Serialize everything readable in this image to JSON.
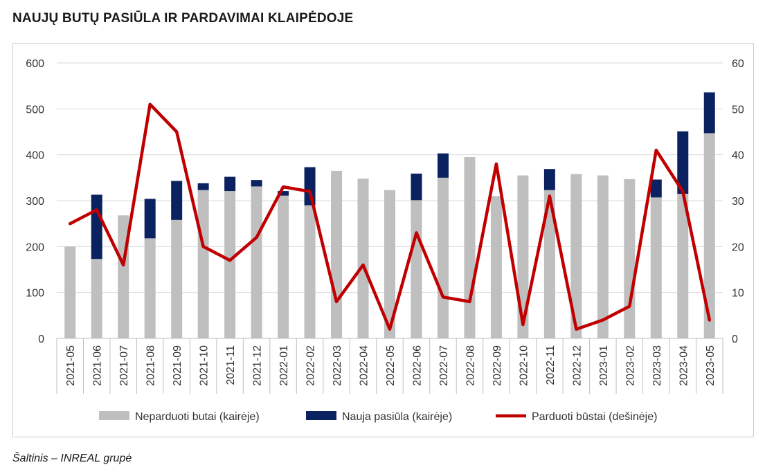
{
  "title": "NAUJŲ BUTŲ PASIŪLA IR PARDAVIMAI KLAIPĖDOJE",
  "source": "Šaltinis – INREAL grupė",
  "chart_data": {
    "type": "bar",
    "stacked": true,
    "categories": [
      "2021-05",
      "2021-06",
      "2021-07",
      "2021-08",
      "2021-09",
      "2021-10",
      "2021-11",
      "2021-12",
      "2022-01",
      "2022-02",
      "2022-03",
      "2022-04",
      "2022-05",
      "2022-06",
      "2022-07",
      "2022-08",
      "2022-09",
      "2022-10",
      "2022-11",
      "2022-12",
      "2023-01",
      "2023-02",
      "2023-03",
      "2023-04",
      "2023-05"
    ],
    "series": [
      {
        "name": "Neparduoti butai (kairėje)",
        "type": "bar",
        "axis": "left",
        "color": "#bfbfbf",
        "values": [
          200,
          173,
          268,
          218,
          258,
          323,
          321,
          331,
          311,
          290,
          365,
          348,
          323,
          301,
          350,
          395,
          310,
          355,
          323,
          358,
          355,
          347,
          307,
          315,
          447
        ]
      },
      {
        "name": "Nauja pasiūla (kairėje)",
        "type": "bar",
        "axis": "left",
        "color": "#0b2260",
        "values": [
          0,
          140,
          0,
          86,
          85,
          15,
          31,
          14,
          10,
          83,
          0,
          0,
          0,
          58,
          53,
          0,
          0,
          0,
          46,
          0,
          0,
          0,
          39,
          136,
          89
        ]
      },
      {
        "name": "Parduoti būstai (dešinėje)",
        "type": "line",
        "axis": "right",
        "color": "#c00000",
        "values": [
          25,
          28,
          16,
          51,
          45,
          20,
          17,
          22,
          33,
          32,
          8,
          16,
          2,
          23,
          9,
          8,
          38,
          3,
          31,
          2,
          4,
          7,
          41,
          32,
          4
        ]
      }
    ],
    "y_left": {
      "min": 0,
      "max": 600,
      "ticks": [
        "0",
        "100",
        "200",
        "300",
        "400",
        "500",
        "600"
      ]
    },
    "y_right": {
      "min": 0,
      "max": 60,
      "ticks": [
        "0",
        "10",
        "20",
        "30",
        "40",
        "50",
        "60"
      ]
    },
    "grid": true,
    "legend_position": "bottom"
  }
}
